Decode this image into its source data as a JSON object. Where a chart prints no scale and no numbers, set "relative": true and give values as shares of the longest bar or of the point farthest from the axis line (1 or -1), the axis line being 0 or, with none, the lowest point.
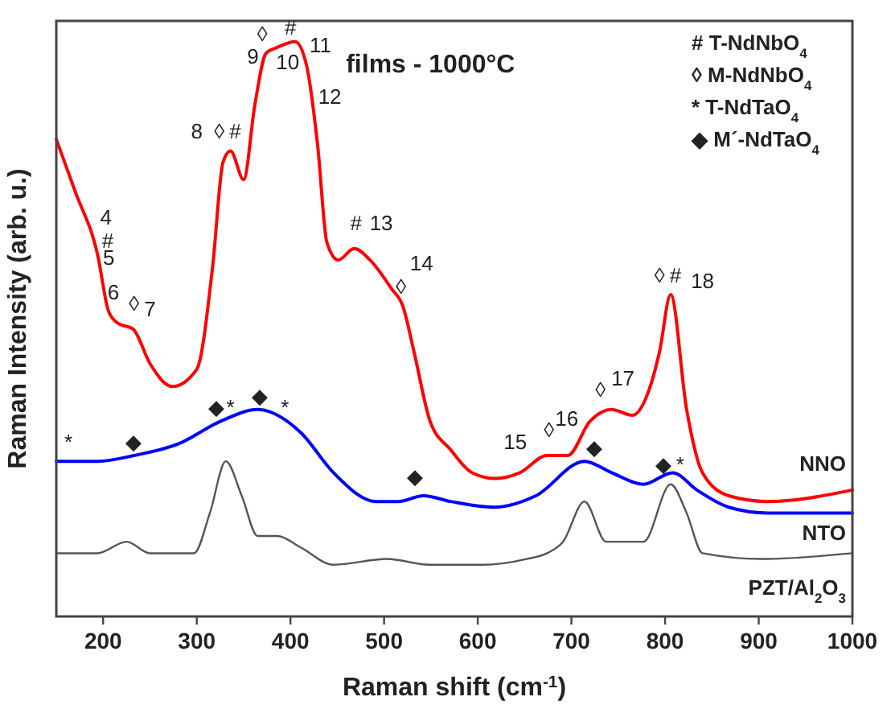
{
  "chart_data": {
    "type": "line",
    "title": "films - 1000°C",
    "xlabel": "Raman shift (cm$^{-1}$)",
    "ylabel": "Raman Intensity (arb. u.)",
    "relative": true,
    "xlim": [
      150,
      1000
    ],
    "xticks": [
      200,
      300,
      400,
      500,
      600,
      700,
      800,
      900,
      1000
    ],
    "tick_labels": "x",
    "grid": false,
    "legend": false,
    "marker": "none",
    "line_style": "solid",
    "series": [
      {
        "name": "NNO",
        "color": "#ff0000",
        "x": [
          150,
          170,
          194,
          206,
          216,
          232,
          250,
          274,
          300,
          317,
          328,
          336,
          350,
          362,
          374,
          386,
          405,
          417,
          429,
          439,
          451,
          468,
          485,
          508,
          520,
          532,
          549,
          571,
          594,
          619,
          645,
          674,
          696,
          720,
          743,
          765,
          782,
          794,
          806,
          823,
          840,
          868,
          909,
          1000
        ],
        "values": [
          0.83,
          0.74,
          0.63,
          0.53,
          0.51,
          0.5,
          0.44,
          0.4,
          0.43,
          0.61,
          0.79,
          0.81,
          0.76,
          0.89,
          0.98,
          0.99,
          1.0,
          0.96,
          0.82,
          0.65,
          0.62,
          0.64,
          0.62,
          0.57,
          0.54,
          0.46,
          0.34,
          0.29,
          0.25,
          0.24,
          0.25,
          0.28,
          0.28,
          0.34,
          0.36,
          0.35,
          0.39,
          0.46,
          0.56,
          0.36,
          0.25,
          0.21,
          0.2,
          0.22
        ]
      },
      {
        "name": "NTO",
        "color": "#0000ff",
        "x": [
          150,
          194,
          233,
          280,
          326,
          365,
          411,
          446,
          491,
          515,
          542,
          571,
          617,
          662,
          714,
          743,
          777,
          808,
          834,
          868,
          909,
          1000
        ],
        "values": [
          0.27,
          0.27,
          0.28,
          0.3,
          0.34,
          0.36,
          0.32,
          0.25,
          0.2,
          0.2,
          0.21,
          0.2,
          0.19,
          0.21,
          0.27,
          0.25,
          0.23,
          0.25,
          0.22,
          0.19,
          0.18,
          0.18
        ]
      },
      {
        "name": "PZT/Al$_{2}$O$_{3}$",
        "color": "#555555",
        "x": [
          150,
          194,
          225,
          250,
          297,
          314,
          331,
          348,
          365,
          386,
          411,
          446,
          503,
          549,
          605,
          652,
          674,
          691,
          714,
          737,
          777,
          806,
          823,
          840,
          903,
          1000
        ],
        "values": [
          0.11,
          0.11,
          0.13,
          0.11,
          0.11,
          0.18,
          0.27,
          0.21,
          0.14,
          0.14,
          0.12,
          0.09,
          0.1,
          0.09,
          0.09,
          0.1,
          0.11,
          0.13,
          0.2,
          0.13,
          0.13,
          0.23,
          0.18,
          0.11,
          0.1,
          0.11
        ]
      }
    ],
    "annotations": [
      "# T-NdNbO$_{4}$",
      "◊ M-NdNbO$_{4}$",
      "* T-NdTaO$_{4}$",
      "◆ M´-NdTaO$_{4}$",
      "4",
      "#",
      "5",
      "6",
      "◊",
      "7",
      "8",
      "◊",
      "#",
      "◊",
      "9",
      "#",
      "10",
      "11",
      "12",
      "#",
      "13",
      "◊",
      "14",
      "15",
      "◊",
      "16",
      "◊",
      "17",
      "◊",
      "#",
      "18",
      "*",
      "◆",
      "◆",
      "*",
      "◆",
      "*",
      "◆",
      "◆",
      "◆",
      "*"
    ]
  }
}
